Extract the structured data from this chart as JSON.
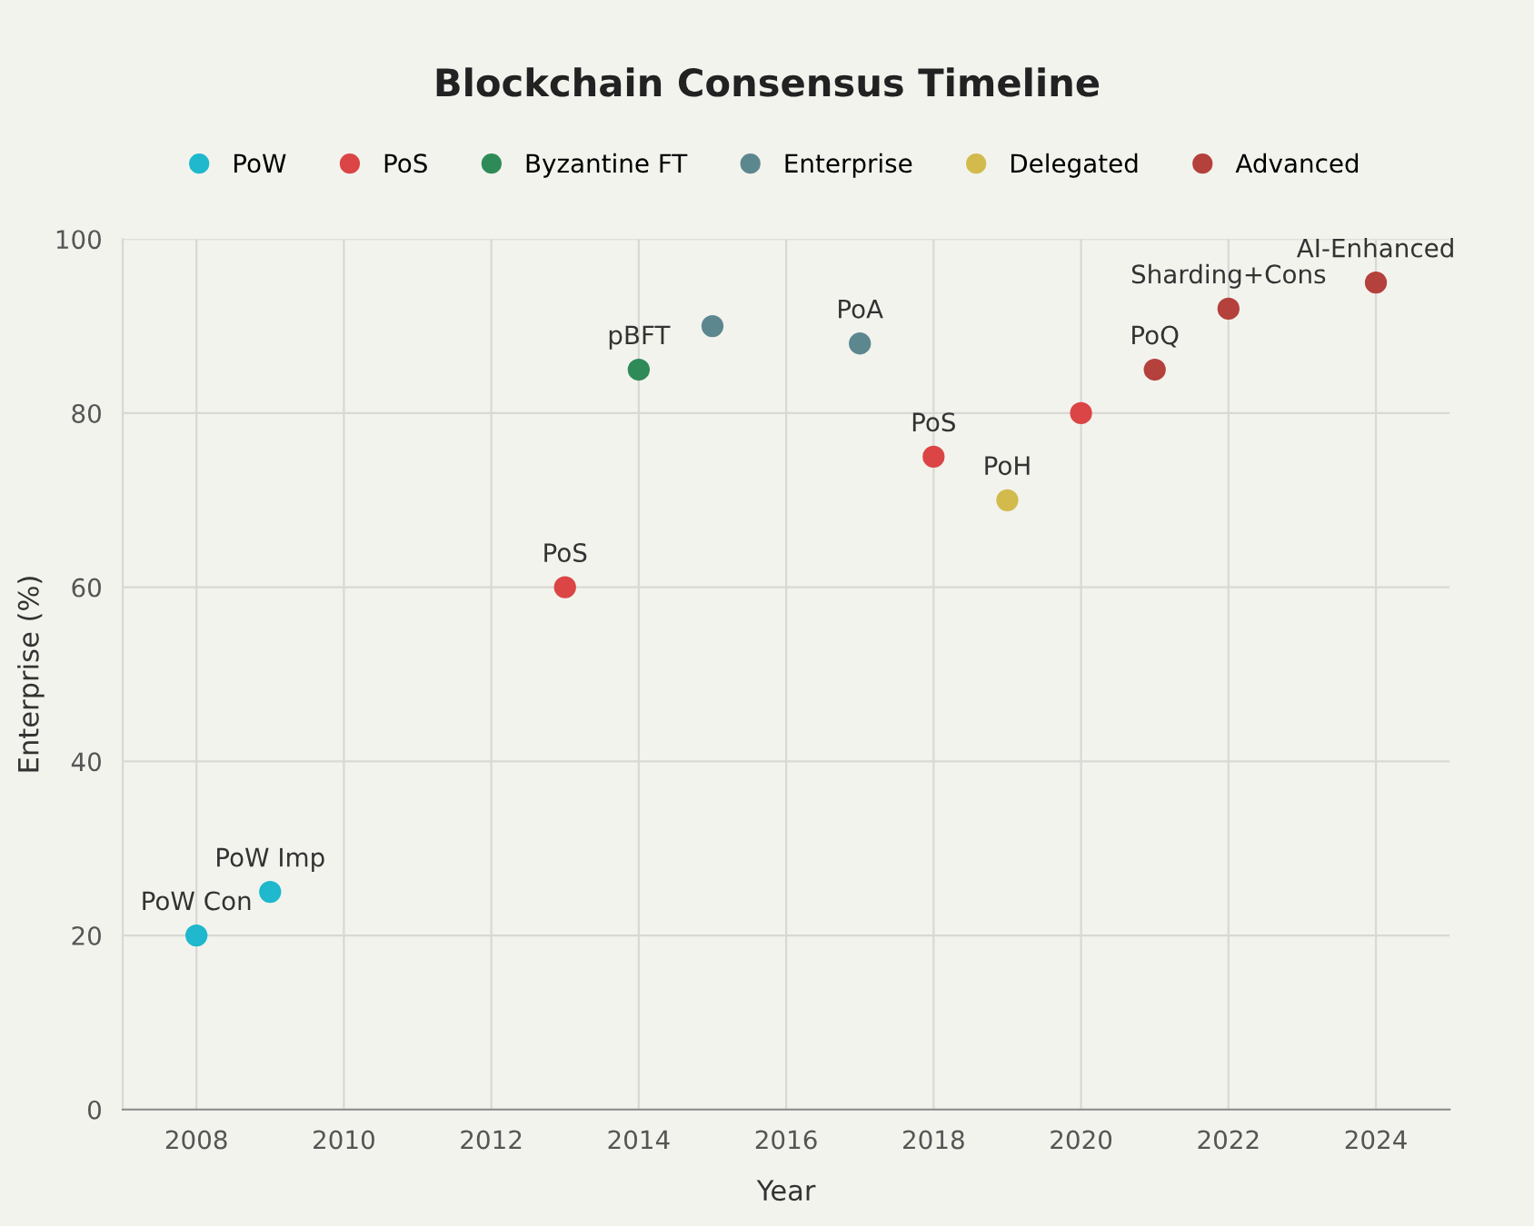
{
  "chart_data": {
    "type": "scatter",
    "title": "Blockchain Consensus Timeline",
    "xlabel": "Year",
    "ylabel": "Enterprise (%)",
    "xlim": [
      2007,
      2025
    ],
    "xticks": [
      2008,
      2010,
      2012,
      2014,
      2016,
      2018,
      2020,
      2022,
      2024
    ],
    "ylim": [
      0,
      100
    ],
    "yticks": [
      0,
      20,
      40,
      60,
      80,
      100
    ],
    "grid": true,
    "legend": "top",
    "marker": "circle",
    "series": [
      {
        "name": "PoW",
        "color": "#1fb8cd",
        "x": [
          2008,
          2009
        ],
        "values": [
          20,
          25
        ],
        "value_labels": [
          "PoW Con",
          "PoW Imp"
        ]
      },
      {
        "name": "PoS",
        "color": "#db4545",
        "x": [
          2013,
          2018,
          2020
        ],
        "values": [
          60,
          75,
          80
        ],
        "value_labels": [
          "PoS",
          "PoS",
          null
        ]
      },
      {
        "name": "Byzantine FT",
        "color": "#2e8b57",
        "x": [
          2014
        ],
        "values": [
          85
        ],
        "value_labels": [
          "pBFT"
        ]
      },
      {
        "name": "Enterprise",
        "color": "#5d878f",
        "x": [
          2015,
          2017
        ],
        "values": [
          90,
          88
        ],
        "value_labels": [
          null,
          "PoA"
        ]
      },
      {
        "name": "Delegated",
        "color": "#d2ba4c",
        "x": [
          2019
        ],
        "values": [
          70
        ],
        "value_labels": [
          "PoH"
        ]
      },
      {
        "name": "Advanced",
        "color": "#b4413c",
        "x": [
          2021,
          2022,
          2024
        ],
        "values": [
          85,
          92,
          95
        ],
        "value_labels": [
          "PoQ",
          "Sharding+Cons",
          "AI-Enhanced"
        ]
      }
    ]
  }
}
